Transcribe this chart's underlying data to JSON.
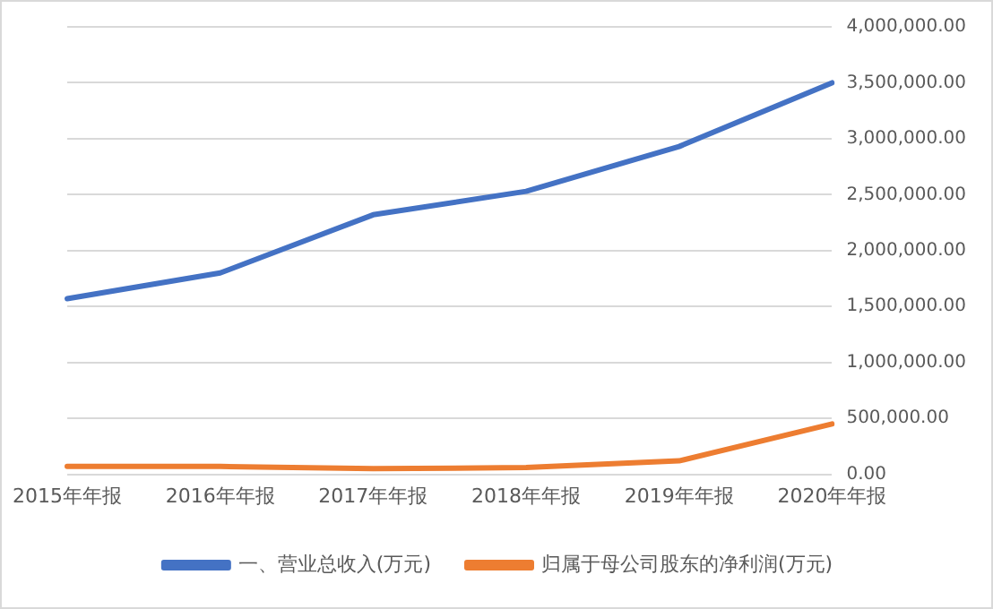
{
  "chart_data": {
    "type": "line",
    "categories": [
      "2015年年报",
      "2016年年报",
      "2017年年报",
      "2018年年报",
      "2019年年报",
      "2020年年报"
    ],
    "series": [
      {
        "name": "一、营业总收入(万元)",
        "color": "#4472c4",
        "values": [
          1570000,
          1800000,
          2320000,
          2530000,
          2930000,
          3500000
        ]
      },
      {
        "name": "归属于母公司股东的净利润(万元)",
        "color": "#ed7d31",
        "values": [
          70000,
          70000,
          50000,
          60000,
          120000,
          450000
        ]
      }
    ],
    "ylim": [
      0,
      4000000
    ],
    "yticks": [
      {
        "value": 0,
        "label": "0.00"
      },
      {
        "value": 500000,
        "label": "500,000.00"
      },
      {
        "value": 1000000,
        "label": "1,000,000.00"
      },
      {
        "value": 1500000,
        "label": "1,500,000.00"
      },
      {
        "value": 2000000,
        "label": "2,000,000.00"
      },
      {
        "value": 2500000,
        "label": "2,500,000.00"
      },
      {
        "value": 3000000,
        "label": "3,000,000.00"
      },
      {
        "value": 3500000,
        "label": "3,500,000.00"
      },
      {
        "value": 4000000,
        "label": "4,000,000.00"
      }
    ],
    "grid": "y",
    "legend": "bottom",
    "marker": "none",
    "line_style": "solid"
  }
}
